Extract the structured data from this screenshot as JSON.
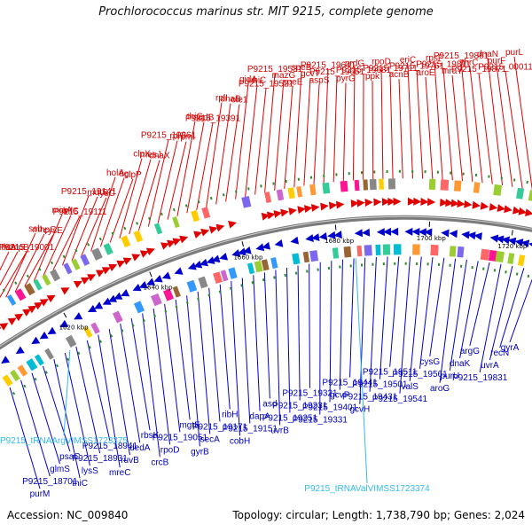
{
  "title": "Prochlorococcus marinus str. MIT 9215, complete genome",
  "footer": {
    "accession": "Accession: NC_009840",
    "summary": "Topology: circular; Length: 1,738,790 bp; Genes: 2,024"
  },
  "ticks": [
    "1620 kbp",
    "1640 kbp",
    "1660 kbp",
    "1680 kbp",
    "1700 kbp",
    "1720 kbp"
  ],
  "colors": {
    "forward": "#e00000",
    "reverse": "#0000cc",
    "rna": "#33bbee",
    "backbone": "#888888"
  },
  "forward_labels": [
    "tktA",
    "smpB",
    "P9215_19001",
    "ssb",
    "mhpC",
    "cysE",
    "miaA",
    "infC",
    "P9215_19111",
    "P9215_19141",
    "mutS",
    "lysC",
    "holA",
    "tig",
    "clpP",
    "clpX",
    "mesJ",
    "dnaX",
    "P9215_19361",
    "rplT",
    "rpmI",
    "thiG",
    "sqdB",
    "P9215_19391",
    "rplI",
    "dnaB",
    "ole1",
    "gidA",
    "ubiC",
    "P9215_19521",
    "P9215_19531",
    "mazG",
    "speE",
    "speB",
    "gcvT",
    "aspS",
    "P9215_19641",
    "P9215_19651",
    "pyrG",
    "nrdG",
    "P9215_19681",
    "ppk",
    "rpoD",
    "P9215_19711",
    "acnB",
    "eriC",
    "P9215_19761",
    "aroE",
    "rpsF",
    "P9215_19811",
    "mraY",
    "P9215_19861",
    "thrC",
    "P9215_19871",
    "dnaN",
    "purF",
    "P9215_00011",
    "purL"
  ],
  "reverse_labels": [
    "purM",
    "P9215_18701",
    "glmS",
    "psaC",
    "thiC",
    "lysS",
    "P9215_18931",
    "P9215_18941",
    "mreC",
    "ruvB",
    "dedA",
    "rbsK",
    "crcB",
    "rpoD",
    "P9215_19051",
    "mgtE",
    "gyrB",
    "secA",
    "P9215_19171",
    "ribH",
    "cobH",
    "P9215_19151",
    "dapA",
    "asd",
    "uvrB",
    "P9215_19251",
    "P9215_19231",
    "P9215_19321",
    "P9215_19331",
    "P9215_19401",
    "gcvP",
    "P9215_19441",
    "gcvH",
    "P9215_19431",
    "P9215_19501",
    "P9215_19511",
    "P9215_19541",
    "valS",
    "P9215_19561",
    "cysG",
    "aroG",
    "purU",
    "dnaK",
    "argG",
    "P9215_19831",
    "uvrA",
    "recN",
    "gyrA"
  ],
  "rna_labels": [
    "P9215_tRNAArgVIMSS1723375",
    "P9215_tRNAValVIMSS1723374"
  ]
}
